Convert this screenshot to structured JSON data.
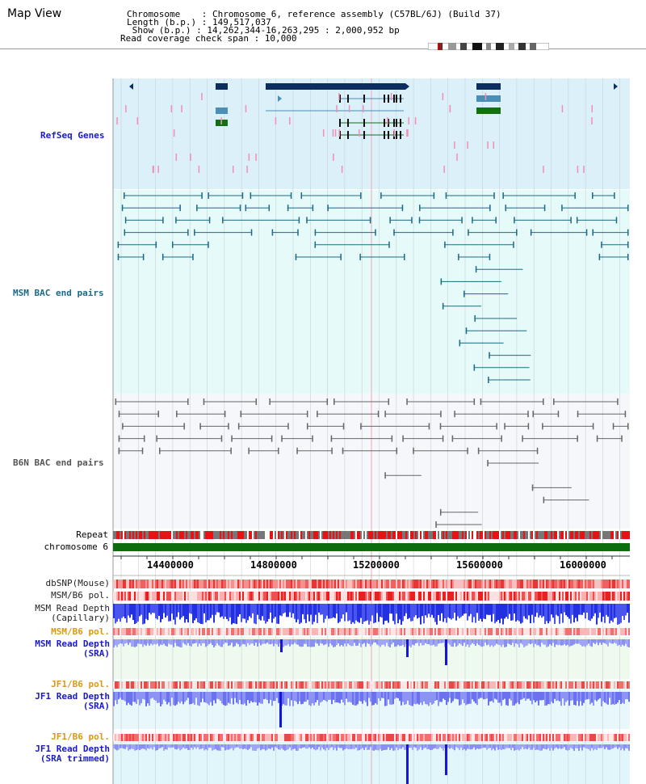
{
  "header": {
    "title": "Map View",
    "chromosome_label": "Chromosome    : Chromosome 6, reference assembly (C57BL/6J) (Build 37)",
    "length_label": "Length (b.p.) : 149,517,037",
    "show_label": " Show (b.p.) : 14,262,344-16,263,295 : 2,000,952 bp",
    "coverage_label": "Read coverage check span : 10,000"
  },
  "tracks": {
    "refseq": "RefSeq Genes",
    "msm_bac": "MSM BAC end pairs",
    "b6n_bac": "B6N BAC end pairs",
    "repeat": "Repeat",
    "chromosome": "chromosome 6"
  },
  "axis": {
    "ticks": [
      "14400000",
      "14800000",
      "15200000",
      "15600000",
      "16000000"
    ]
  },
  "lower_tracks": {
    "dbsnp": "dbSNP(Mouse)",
    "msm_b6_pol_1": "MSM/B6 pol.",
    "msm_read_depth_cap_1": "MSM Read Depth",
    "msm_read_depth_cap_2": "(Capillary)",
    "msm_b6_pol_2": "MSM/B6 pol.",
    "msm_read_depth_sra_1": "MSM Read Depth",
    "msm_read_depth_sra_2": "(SRA)",
    "jf1_b6_pol_1": "JF1/B6 pol.",
    "jf1_read_depth_sra_1": "JF1 Read Depth",
    "jf1_read_depth_sra_2": "(SRA)",
    "jf1_b6_pol_2": "JF1/B6 pol.",
    "jf1_read_depth_trim_1": "JF1 Read Depth",
    "jf1_read_depth_trim_2": "(SRA trimmed)"
  },
  "colors": {
    "refseq_bg": "#dcf0fa",
    "msm_bg": "#e6fafa",
    "b6n_bg": "#f5f7fb",
    "gene_dark": "#0b2d5f",
    "gene_mid": "#4a8fb5",
    "gene_green": "#127012",
    "label_blue": "#1a1acc",
    "label_teal": "#1b6a86",
    "label_gray": "#555555",
    "label_orange": "#d99a10",
    "chromosome_bar": "#0b6d0b"
  }
}
